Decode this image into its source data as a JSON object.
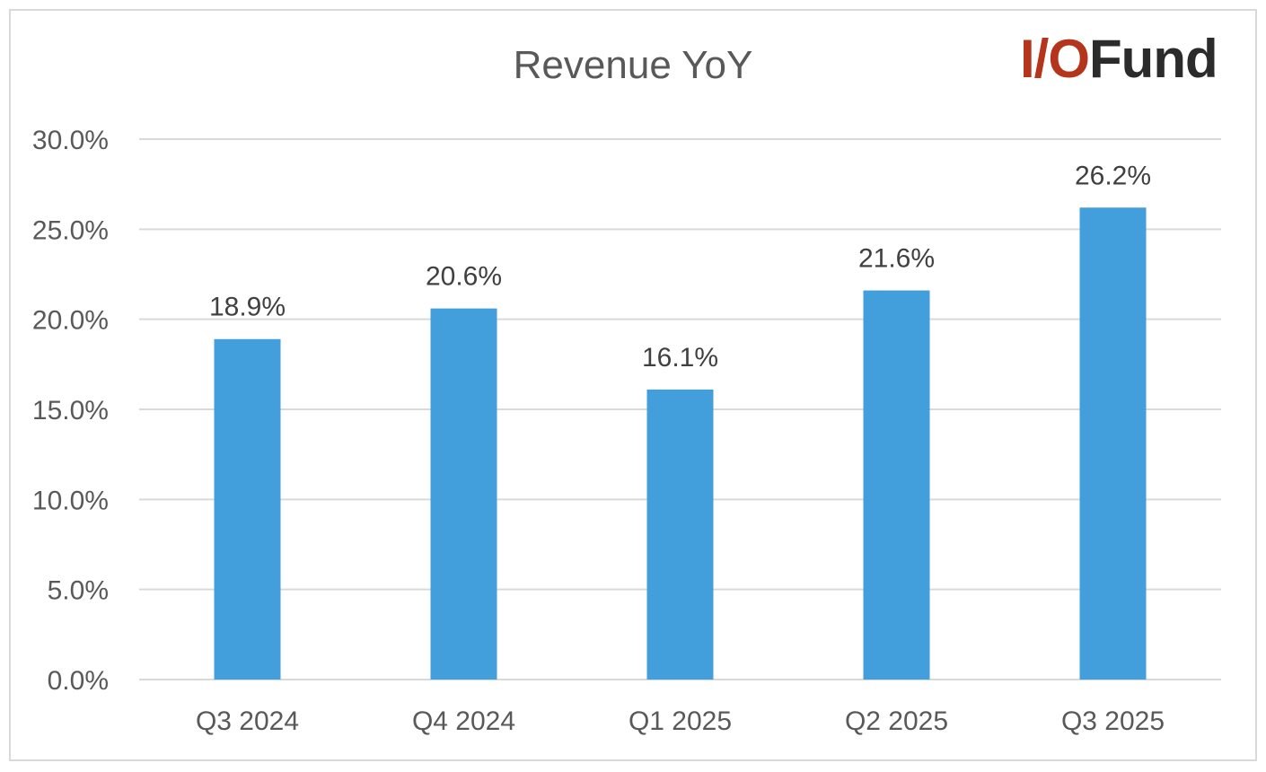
{
  "chart_data": {
    "type": "bar",
    "title": "Revenue YoY",
    "categories": [
      "Q3 2024",
      "Q4 2024",
      "Q1 2025",
      "Q2 2025",
      "Q3 2025"
    ],
    "values": [
      18.9,
      20.6,
      16.1,
      21.6,
      26.2
    ],
    "data_labels": [
      "18.9%",
      "20.6%",
      "16.1%",
      "21.6%",
      "26.2%"
    ],
    "y_ticks": [
      0,
      5,
      10,
      15,
      20,
      25,
      30
    ],
    "y_tick_labels": [
      "0.0%",
      "5.0%",
      "10.0%",
      "15.0%",
      "20.0%",
      "25.0%",
      "30.0%"
    ],
    "ylim": [
      0,
      30
    ],
    "xlabel": "",
    "ylabel": "",
    "grid": true,
    "legend": "none",
    "bar_color": "#439fdb",
    "grid_color": "#d9d9d9"
  },
  "logo": {
    "part1": "I/O",
    "part2": "Fund",
    "color1": "#b5341c",
    "color2": "#2b2b2b"
  }
}
